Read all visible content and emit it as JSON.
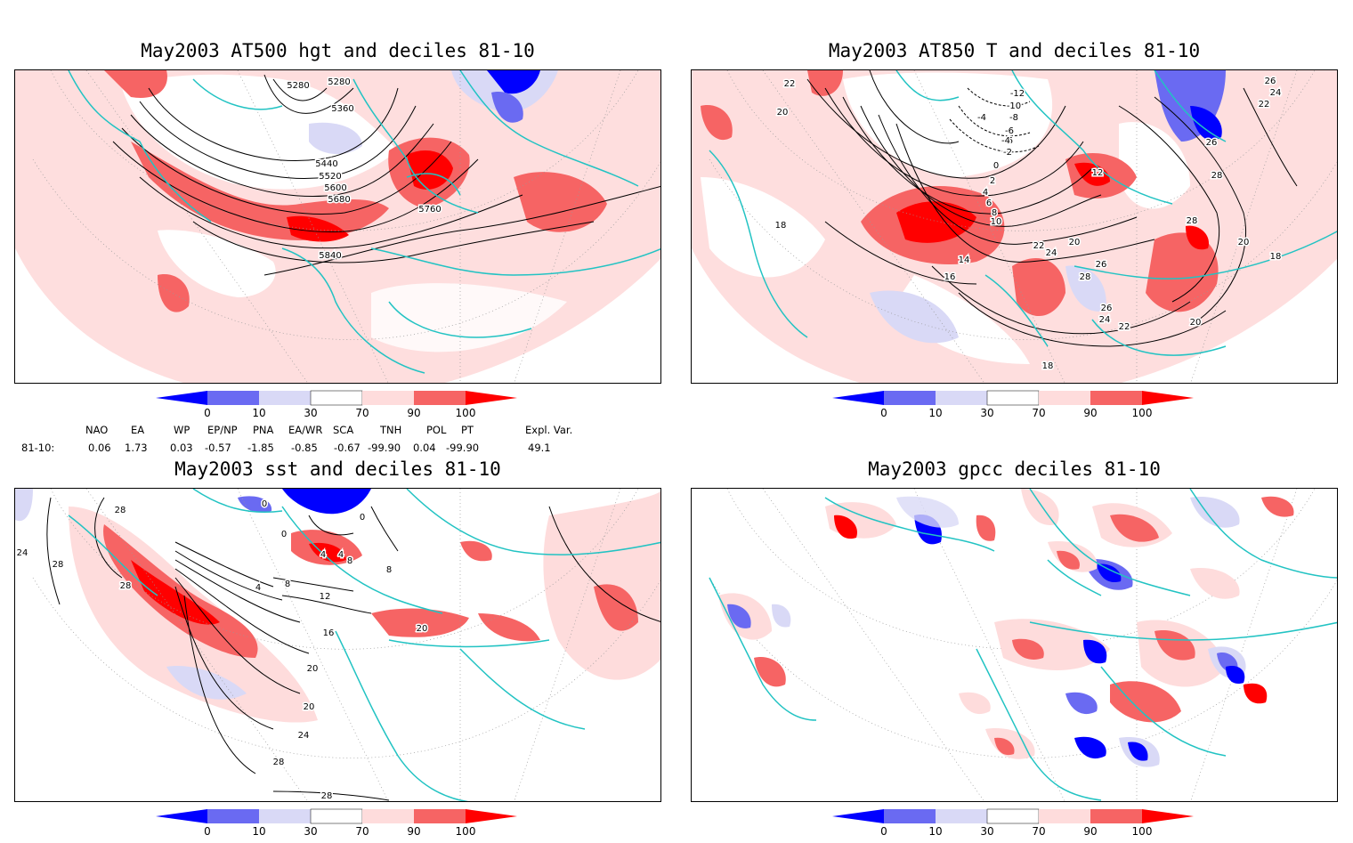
{
  "colors": {
    "coast": "#22c3c3",
    "d0": "#0000ff",
    "d10": "#6a6af2",
    "d30": "#d9d9f6",
    "d70": "#fedcdc",
    "d90": "#f66464",
    "d100": "#ff0000"
  },
  "colorbar": {
    "ticks": [
      "0",
      "10",
      "30",
      "70",
      "90",
      "100"
    ]
  },
  "panels": [
    {
      "id": "p1",
      "title": "May2003 AT500 hgt and deciles 81-10",
      "contour_labels": [
        "5280",
        "5280",
        "5360",
        "5440",
        "5520",
        "5600",
        "5680",
        "5760",
        "5840"
      ]
    },
    {
      "id": "p2",
      "title": "May2003 AT850 T and deciles 81-10",
      "contour_labels": [
        "22",
        "20",
        "-12",
        "-10",
        "-8",
        "-6",
        "-6",
        "-4",
        "-4",
        "-2",
        "0",
        "2",
        "4",
        "6",
        "8",
        "10",
        "12",
        "14",
        "16",
        "18",
        "18",
        "26",
        "24",
        "22",
        "26",
        "28",
        "28",
        "20",
        "24",
        "22",
        "20",
        "26",
        "28",
        "26",
        "24",
        "22",
        "20",
        "18",
        "18"
      ]
    },
    {
      "id": "p3",
      "title": "May2003 sst and deciles 81-10",
      "contour_labels": [
        "28",
        "24",
        "28",
        "28",
        "0",
        "0",
        "0",
        "4",
        "4",
        "8",
        "8",
        "4",
        "8",
        "12",
        "16",
        "20",
        "20",
        "20",
        "24",
        "28",
        "28"
      ]
    },
    {
      "id": "p4",
      "title": "May2003 gpcc deciles 81-10",
      "contour_labels": []
    }
  ],
  "teleconnections": {
    "headers": [
      "NAO",
      "EA",
      "WP",
      "EP/NP",
      "PNA",
      "EA/WR",
      "SCA",
      "TNH",
      "POL",
      "PT",
      "Expl. Var."
    ],
    "row_label": "81-10:",
    "values": [
      "0.06",
      "1.73",
      "0.03",
      "-0.57",
      "-1.85",
      "-0.85",
      "-0.67",
      "-99.90",
      "0.04",
      "-99.90",
      "49.1"
    ]
  }
}
